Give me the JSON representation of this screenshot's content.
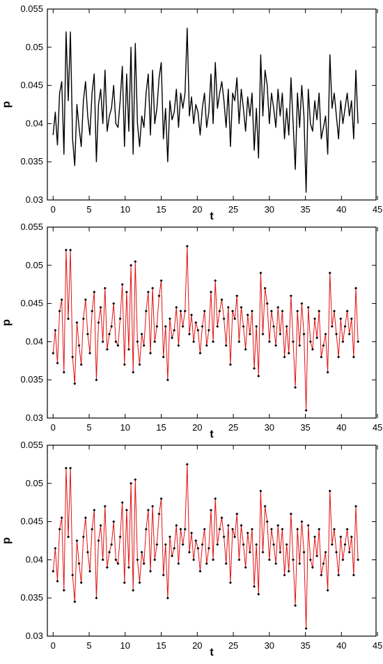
{
  "colors": {
    "line_black": "#000000",
    "line_red": "#e01010",
    "marker": "#000000",
    "axes": "#000000"
  },
  "chart_data": [
    {
      "type": "line",
      "xlabel": "t",
      "ylabel": "p",
      "xlim": [
        -0.8,
        44.8
      ],
      "ylim": [
        0.03,
        0.055
      ],
      "xticks": [
        "0",
        "5",
        "10",
        "15",
        "20",
        "25",
        "30",
        "35",
        "40",
        "45"
      ],
      "yticks": [
        "0.03",
        "0.035",
        "0.04",
        "0.045",
        "0.05",
        "0.055"
      ],
      "grid": false,
      "series": [
        {
          "color": "black",
          "markers": false,
          "marker_density": 0,
          "x": [],
          "y": []
        }
      ]
    },
    {
      "type": "line",
      "xlabel": "t",
      "ylabel": "p",
      "xlim": [
        -0.8,
        44.8
      ],
      "ylim": [
        0.03,
        0.055
      ],
      "xticks": [
        "0",
        "5",
        "10",
        "15",
        "20",
        "25",
        "30",
        "35",
        "40",
        "45"
      ],
      "yticks": [
        "0.03",
        "0.035",
        "0.04",
        "0.045",
        "0.05",
        "0.055"
      ],
      "grid": false,
      "series": [
        {
          "color": "red",
          "markers": true,
          "marker_density": 3,
          "x": [],
          "y": []
        }
      ]
    },
    {
      "type": "line",
      "xlabel": "t",
      "ylabel": "p",
      "xlim": [
        -0.8,
        44.8
      ],
      "ylim": [
        0.03,
        0.055
      ],
      "xticks": [
        "0",
        "5",
        "10",
        "15",
        "20",
        "25",
        "30",
        "35",
        "40",
        "45"
      ],
      "yticks": [
        "0.03",
        "0.035",
        "0.04",
        "0.045",
        "0.05",
        "0.055"
      ],
      "grid": false,
      "series": [
        {
          "color": "red",
          "markers": true,
          "marker_density": 1,
          "x": [],
          "y": []
        }
      ]
    }
  ],
  "signal": {
    "t": [
      0,
      0.3,
      0.6,
      0.9,
      1.2,
      1.5,
      1.8,
      2.1,
      2.4,
      2.7,
      3.0,
      3.3,
      3.6,
      3.9,
      4.2,
      4.5,
      4.8,
      5.1,
      5.4,
      5.7,
      6.0,
      6.3,
      6.6,
      6.9,
      7.2,
      7.5,
      7.8,
      8.1,
      8.4,
      8.7,
      9.0,
      9.3,
      9.6,
      9.9,
      10.2,
      10.5,
      10.8,
      11.1,
      11.4,
      11.7,
      12.0,
      12.3,
      12.6,
      12.9,
      13.2,
      13.5,
      13.8,
      14.1,
      14.4,
      14.7,
      15.0,
      15.3,
      15.6,
      15.9,
      16.2,
      16.5,
      16.8,
      17.1,
      17.4,
      17.7,
      18.0,
      18.3,
      18.6,
      18.9,
      19.2,
      19.5,
      19.8,
      20.1,
      20.4,
      20.7,
      21.0,
      21.3,
      21.6,
      21.9,
      22.2,
      22.5,
      22.8,
      23.1,
      23.4,
      23.7,
      24.0,
      24.3,
      24.6,
      24.9,
      25.2,
      25.5,
      25.8,
      26.1,
      26.4,
      26.7,
      27.0,
      27.3,
      27.6,
      27.9,
      28.2,
      28.5,
      28.8,
      29.1,
      29.4,
      29.7,
      30.0,
      30.3,
      30.6,
      30.9,
      31.2,
      31.5,
      31.8,
      32.1,
      32.4,
      32.7,
      33.0,
      33.3,
      33.6,
      33.9,
      34.2,
      34.5,
      34.8,
      35.1,
      35.4,
      35.7,
      36.0,
      36.3,
      36.6,
      36.9,
      37.2,
      37.5,
      37.8,
      38.1,
      38.4,
      38.7,
      39.0,
      39.3,
      39.6,
      39.9,
      40.2,
      40.5,
      40.8,
      41.1,
      41.4,
      41.7,
      42.0,
      42.3,
      42.6,
      42.9,
      43.2,
      43.5,
      43.8,
      44.1
    ],
    "p": [
      0.0385,
      0.0415,
      0.0372,
      0.044,
      0.0455,
      0.036,
      0.052,
      0.043,
      0.052,
      0.038,
      0.0345,
      0.0425,
      0.0395,
      0.037,
      0.043,
      0.0455,
      0.041,
      0.0385,
      0.044,
      0.0465,
      0.035,
      0.0425,
      0.0445,
      0.04,
      0.047,
      0.039,
      0.041,
      0.042,
      0.045,
      0.04,
      0.0395,
      0.043,
      0.0475,
      0.037,
      0.0465,
      0.039,
      0.05,
      0.036,
      0.0505,
      0.04,
      0.037,
      0.041,
      0.0395,
      0.044,
      0.0465,
      0.0385,
      0.047,
      0.04,
      0.042,
      0.046,
      0.048,
      0.038,
      0.042,
      0.035,
      0.043,
      0.0405,
      0.0415,
      0.0445,
      0.0395,
      0.044,
      0.042,
      0.044,
      0.0525,
      0.041,
      0.0435,
      0.04,
      0.0425,
      0.0415,
      0.0385,
      0.042,
      0.044,
      0.0395,
      0.0415,
      0.0465,
      0.04,
      0.048,
      0.042,
      0.044,
      0.0455,
      0.043,
      0.0395,
      0.0445,
      0.037,
      0.044,
      0.043,
      0.046,
      0.04,
      0.0445,
      0.042,
      0.039,
      0.0435,
      0.041,
      0.044,
      0.0365,
      0.042,
      0.0355,
      0.049,
      0.041,
      0.047,
      0.045,
      0.04,
      0.044,
      0.042,
      0.0395,
      0.0445,
      0.041,
      0.044,
      0.038,
      0.042,
      0.0385,
      0.046,
      0.04,
      0.034,
      0.044,
      0.0395,
      0.045,
      0.041,
      0.031,
      0.0445,
      0.04,
      0.039,
      0.043,
      0.0405,
      0.044,
      0.038,
      0.0395,
      0.041,
      0.036,
      0.049,
      0.042,
      0.044,
      0.041,
      0.038,
      0.043,
      0.04,
      0.042,
      0.044,
      0.041,
      0.043,
      0.038,
      0.047,
      0.04
    ]
  }
}
